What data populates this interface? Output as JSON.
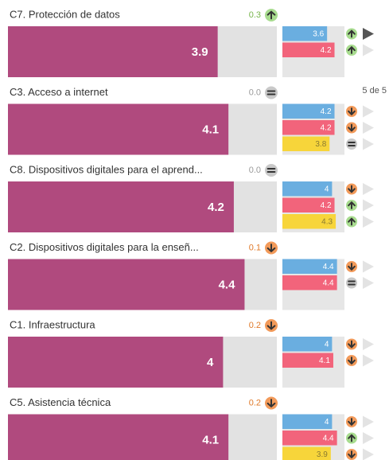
{
  "pager": "5 de 5",
  "xlim": [
    0,
    5
  ],
  "main_color": "#b04a7e",
  "comparison_colors": [
    "#6aaee0",
    "#f2647b",
    "#f7d53a"
  ],
  "trend_colors": {
    "up": "#a8dc8f",
    "down": "#f29a5a",
    "equal": "#c9c9c9"
  },
  "trend_text_colors": {
    "up": "#78b54c",
    "down": "#e07a2a",
    "equal": "#9a9a9a"
  },
  "items": [
    {
      "label": "C7. Protección de datos",
      "change": "0.3",
      "trend": "up",
      "value": 3.9,
      "comparisons": [
        {
          "value": 3.6,
          "trend": "up"
        },
        {
          "value": 4.2,
          "trend": "up"
        }
      ]
    },
    {
      "label": "C3. Acceso a internet",
      "change": "0.0",
      "trend": "equal",
      "value": 4.1,
      "comparisons": [
        {
          "value": 4.2,
          "trend": "down"
        },
        {
          "value": 4.2,
          "trend": "down"
        },
        {
          "value": 3.8,
          "trend": "equal"
        }
      ]
    },
    {
      "label": "C8. Dispositivos digitales para el aprend...",
      "change": "0.0",
      "trend": "equal",
      "value": 4.2,
      "comparisons": [
        {
          "value": 4,
          "trend": "down"
        },
        {
          "value": 4.2,
          "trend": "up"
        },
        {
          "value": 4.3,
          "trend": "up"
        }
      ]
    },
    {
      "label": "C2. Dispositivos digitales para la enseñ...",
      "change": "0.1",
      "trend": "down",
      "value": 4.4,
      "comparisons": [
        {
          "value": 4.4,
          "trend": "down"
        },
        {
          "value": 4.4,
          "trend": "equal"
        }
      ]
    },
    {
      "label": "C1. Infraestructura",
      "change": "0.2",
      "trend": "down",
      "value": 4,
      "comparisons": [
        {
          "value": 4,
          "trend": "down"
        },
        {
          "value": 4.1,
          "trend": "down"
        }
      ]
    },
    {
      "label": "C5. Asistencia técnica",
      "change": "0.2",
      "trend": "down",
      "value": 4.1,
      "comparisons": [
        {
          "value": 4,
          "trend": "down"
        },
        {
          "value": 4.4,
          "trend": "up"
        },
        {
          "value": 3.9,
          "trend": "down"
        }
      ]
    }
  ]
}
